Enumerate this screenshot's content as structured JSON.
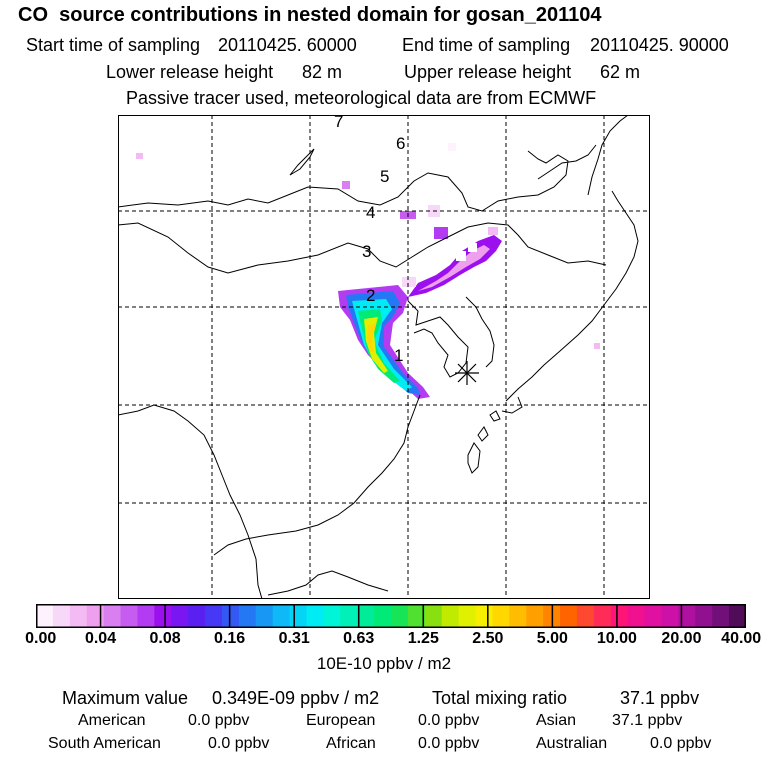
{
  "header": {
    "title": "CO  source contributions in nested domain for gosan_201104",
    "start_label": "Start time of sampling",
    "start_value": "20110425. 60000",
    "end_label": "End time of sampling",
    "end_value": "20110425. 90000",
    "lower_label": "Lower release height",
    "lower_value": "82 m",
    "upper_label": "Upper release height",
    "upper_value": "62 m",
    "note": "Passive tracer used, meteorological data are from ECMWF"
  },
  "map": {
    "trajectory_labels": [
      "1",
      "2",
      "3",
      "4",
      "5",
      "6",
      "7"
    ],
    "receptor_marker": "asterisk",
    "colors": {
      "coast": "#000000",
      "grid": "#000000",
      "background": "#ffffff"
    }
  },
  "colorbar": {
    "tick_labels": [
      "0.00",
      "0.04",
      "0.08",
      "0.16",
      "0.31",
      "0.63",
      "1.25",
      "2.50",
      "5.00",
      "10.00",
      "20.00",
      "40.00"
    ],
    "unit": "10E-10 ppbv / m2",
    "colors": [
      "#fdf2fd",
      "#f8d8f8",
      "#f3baf3",
      "#eea0ee",
      "#d97ff0",
      "#c75cf0",
      "#b33bf2",
      "#9c10f0",
      "#7a16f2",
      "#5a20f2",
      "#4638f4",
      "#3458f4",
      "#2478f4",
      "#1898f4",
      "#0fb8f6",
      "#06d4f6",
      "#00ecf4",
      "#00f4d8",
      "#00f0b8",
      "#00ec98",
      "#00ea78",
      "#18e458",
      "#50e030",
      "#88e010",
      "#c0ea00",
      "#e0f000",
      "#f8ee00",
      "#ffd800",
      "#ffbc00",
      "#ffa000",
      "#ff8400",
      "#ff6400",
      "#ff4830",
      "#ff2c58",
      "#ff1478",
      "#f01090",
      "#e010a0",
      "#cc10a8",
      "#b010a0",
      "#901090",
      "#701078",
      "#500c58"
    ]
  },
  "summary": {
    "max_label": "Maximum value",
    "max_value": "0.349E-09 ppbv / m2",
    "total_label": "Total mixing ratio",
    "total_value": "37.1 ppbv",
    "regions": [
      {
        "name": "American",
        "value": "0.0 ppbv"
      },
      {
        "name": "European",
        "value": "0.0 ppbv"
      },
      {
        "name": "Asian",
        "value": "37.1 ppbv"
      },
      {
        "name": "South American",
        "value": "0.0 ppbv"
      },
      {
        "name": "African",
        "value": "0.0 ppbv"
      },
      {
        "name": "Australian",
        "value": "0.0 ppbv"
      }
    ]
  }
}
